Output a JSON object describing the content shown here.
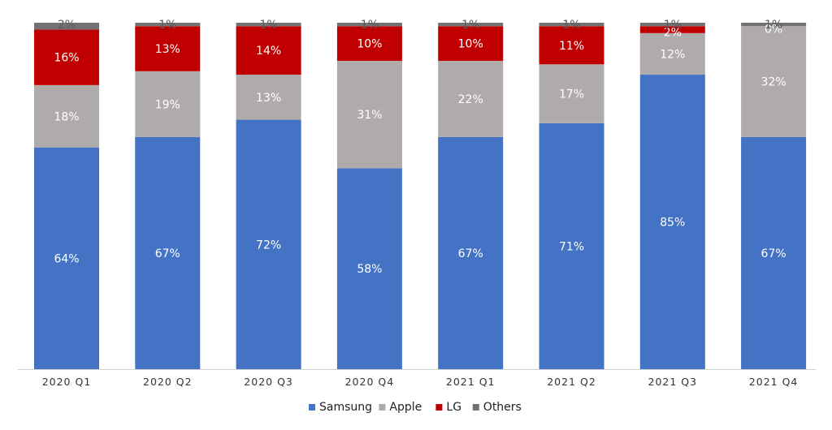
{
  "chart_data": {
    "type": "bar",
    "stacked": true,
    "percent_stacked": true,
    "title": "",
    "xlabel": "",
    "ylabel": "",
    "ylim": [
      0,
      100
    ],
    "grid": false,
    "legend_position": "bottom",
    "categories": [
      "2020 Q1",
      "2020 Q2",
      "2020 Q3",
      "2020 Q4",
      "2021 Q1",
      "2021 Q2",
      "2021 Q3",
      "2021 Q4"
    ],
    "series": [
      {
        "name": "Samsung",
        "color": "#4472C4",
        "label_color": "#FFFFFF",
        "values": [
          64,
          67,
          72,
          58,
          67,
          71,
          85,
          67
        ],
        "labels": [
          "64%",
          "67%",
          "72%",
          "58%",
          "67%",
          "71%",
          "85%",
          "67%"
        ]
      },
      {
        "name": "Apple",
        "color": "#AFABAB",
        "label_color": "#FFFFFF",
        "values": [
          18,
          19,
          13,
          31,
          22,
          17,
          12,
          32
        ],
        "labels": [
          "18%",
          "19%",
          "13%",
          "31%",
          "22%",
          "17%",
          "12%",
          "32%"
        ]
      },
      {
        "name": "LG",
        "color": "#C00000",
        "label_color": "#FFFFFF",
        "values": [
          16,
          13,
          14,
          10,
          10,
          11,
          2,
          0
        ],
        "labels": [
          "16%",
          "13%",
          "14%",
          "10%",
          "10%",
          "11%",
          "2%",
          "0%"
        ]
      },
      {
        "name": "Others",
        "color": "#767171",
        "label_color": "#595959",
        "values": [
          2,
          1,
          1,
          1,
          1,
          1,
          1,
          1
        ],
        "labels": [
          "2%",
          "1%",
          "1%",
          "1%",
          "1%",
          "1%",
          "1%",
          "1%"
        ]
      }
    ]
  }
}
